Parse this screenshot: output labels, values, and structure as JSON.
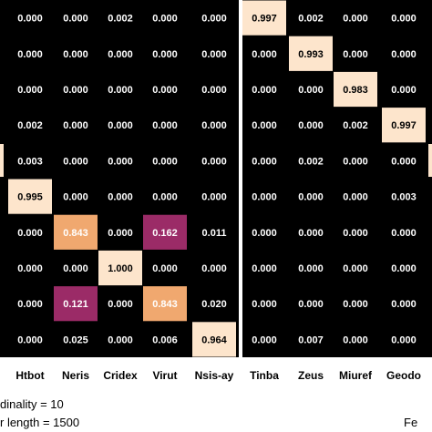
{
  "chart_data": [
    {
      "type": "heatmap",
      "title": "",
      "xlabel": "",
      "ylabel": "",
      "columns": [
        "Htbot",
        "Neris",
        "Cridex",
        "Virut",
        "Nsis-ay"
      ],
      "rows": [],
      "values": [
        [
          0.0,
          0.0,
          0.002,
          0.0,
          0.0
        ],
        [
          0.0,
          0.0,
          0.0,
          0.0,
          0.0
        ],
        [
          0.0,
          0.0,
          0.0,
          0.0,
          0.0
        ],
        [
          0.002,
          0.0,
          0.0,
          0.0,
          0.0
        ],
        [
          0.003,
          0.0,
          0.0,
          0.0,
          0.0
        ],
        [
          0.995,
          0.0,
          0.0,
          0.0,
          0.0
        ],
        [
          0.0,
          0.843,
          0.0,
          0.162,
          0.011
        ],
        [
          0.0,
          0.0,
          1.0,
          0.0,
          0.0
        ],
        [
          0.0,
          0.121,
          0.0,
          0.843,
          0.02
        ],
        [
          0.0,
          0.025,
          0.0,
          0.006,
          0.964
        ]
      ],
      "colors": {
        "background": "#000000",
        "high": "#fde5cc",
        "mid": "#f0a86f",
        "low": "#9b2b67"
      }
    },
    {
      "type": "heatmap",
      "title": "",
      "xlabel": "",
      "ylabel": "",
      "columns": [
        "Tinba",
        "Zeus",
        "Miuref",
        "Geodo"
      ],
      "rows": [],
      "values": [
        [
          0.997,
          0.002,
          0.0,
          0.0
        ],
        [
          0.0,
          0.993,
          0.0,
          0.0
        ],
        [
          0.0,
          0.0,
          0.983,
          0.0
        ],
        [
          0.0,
          0.0,
          0.002,
          0.997
        ],
        [
          0.0,
          0.002,
          0.0,
          0.0
        ],
        [
          0.0,
          0.0,
          0.0,
          0.003
        ],
        [
          0.0,
          0.0,
          0.0,
          0.0
        ],
        [
          0.0,
          0.0,
          0.0,
          0.0
        ],
        [
          0.0,
          0.0,
          0.0,
          0.0
        ],
        [
          0.0,
          0.007,
          0.0,
          0.0
        ]
      ]
    }
  ],
  "notes": {
    "cardinality": "dinality =  10",
    "length": "r length = 1500",
    "cut_label": "Fe"
  }
}
